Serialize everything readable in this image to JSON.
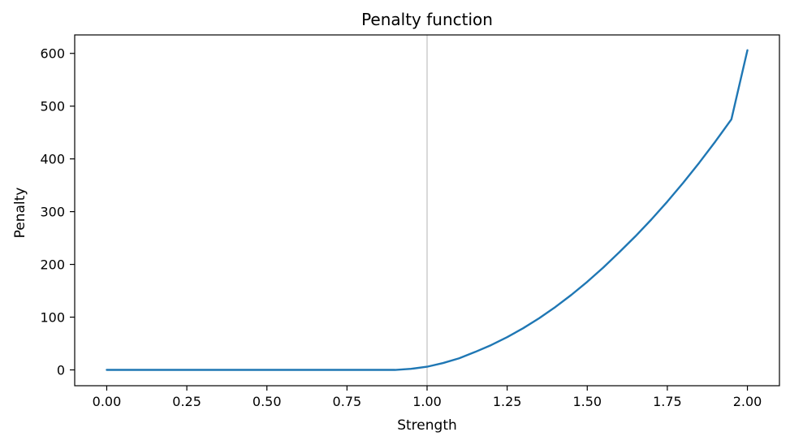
{
  "chart_data": {
    "type": "line",
    "title": "Penalty function",
    "xlabel": "Strength",
    "ylabel": "Penalty",
    "xlim": [
      -0.1,
      2.1
    ],
    "ylim": [
      -30,
      635
    ],
    "grid": false,
    "xticks": [
      0.0,
      0.25,
      0.5,
      0.75,
      1.0,
      1.25,
      1.5,
      1.75,
      2.0
    ],
    "xtick_labels": [
      "0.00",
      "0.25",
      "0.50",
      "0.75",
      "1.00",
      "1.25",
      "1.50",
      "1.75",
      "2.00"
    ],
    "yticks": [
      0,
      100,
      200,
      300,
      400,
      500,
      600
    ],
    "ytick_labels": [
      "0",
      "100",
      "200",
      "300",
      "400",
      "500",
      "600"
    ],
    "reference_line": {
      "x": 1.0,
      "color": "#d9d9d9"
    },
    "series": [
      {
        "color": "#1f77b4",
        "x": [
          0.0,
          0.25,
          0.5,
          0.75,
          0.9,
          0.95,
          1.0,
          1.05,
          1.1,
          1.15,
          1.2,
          1.25,
          1.3,
          1.35,
          1.4,
          1.45,
          1.5,
          1.55,
          1.6,
          1.65,
          1.7,
          1.75,
          1.8,
          1.85,
          1.9,
          1.95,
          2.0
        ],
        "y": [
          0,
          0,
          0,
          0,
          0,
          2,
          6,
          13,
          22,
          34,
          47,
          62,
          79,
          98,
          119,
          142,
          167,
          194,
          223,
          253,
          285,
          319,
          355,
          393,
          433,
          475,
          606
        ]
      }
    ]
  }
}
